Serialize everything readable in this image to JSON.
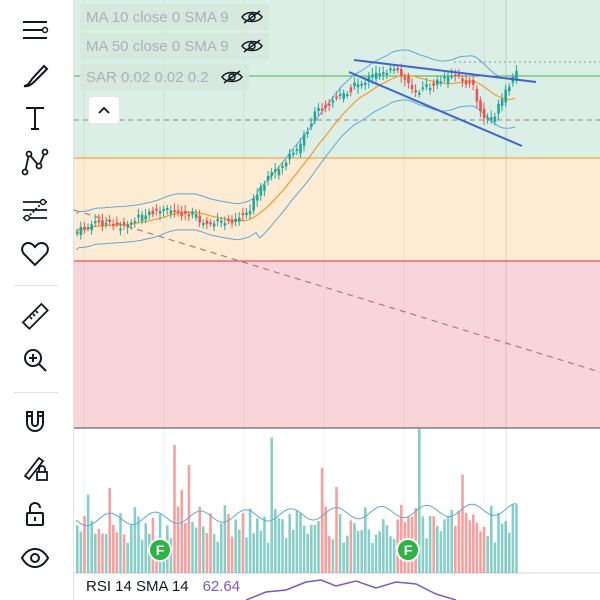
{
  "toolbar": {
    "tools": [
      {
        "name": "crosshair-menu-icon"
      },
      {
        "name": "brush-icon"
      },
      {
        "name": "text-tool-icon"
      },
      {
        "name": "pattern-tool-icon"
      },
      {
        "name": "fib-tool-icon"
      },
      {
        "name": "favorites-heart-icon"
      },
      {
        "name": "ruler-icon"
      },
      {
        "name": "zoom-in-icon"
      },
      {
        "name": "magnet-icon"
      },
      {
        "name": "lock-drawings-icon"
      },
      {
        "name": "unlock-icon"
      },
      {
        "name": "visibility-eye-icon"
      }
    ]
  },
  "legend": {
    "rows": [
      {
        "text": "MA 10 close 0 SMA 9"
      },
      {
        "text": "MA 50 close 0 SMA 9"
      },
      {
        "text": "SAR 0.02 0.02 0.2"
      }
    ]
  },
  "rsi": {
    "label": "RSI 14 SMA 14",
    "value": "62.64"
  },
  "events": [
    {
      "letter": "F"
    },
    {
      "letter": "F"
    }
  ],
  "colors": {
    "up": "#26a69a",
    "down": "#ef5350",
    "zone_green": "#dcefe6",
    "zone_orange": "#fdebd3",
    "zone_red": "#f9d5d9",
    "bb_line": "#5fa8d3",
    "ma_line": "#f59a23",
    "trendline": "#3d63d6"
  }
}
